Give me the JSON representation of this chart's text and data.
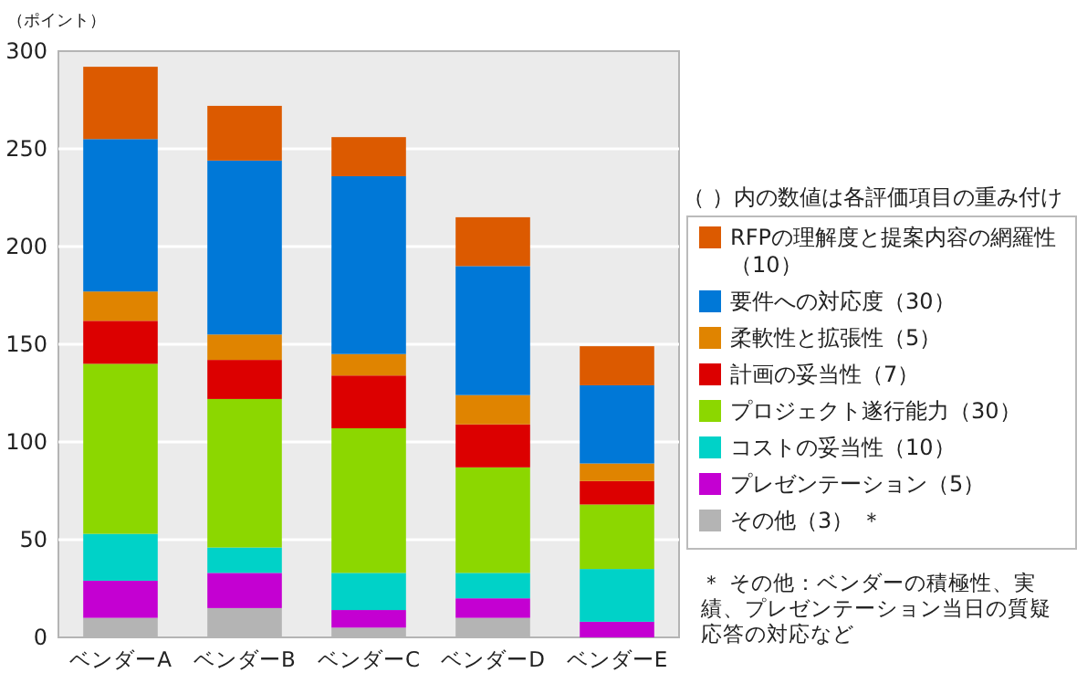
{
  "chart_data": {
    "type": "bar",
    "stacked": true,
    "ylabel": "（ポイント）",
    "legend_title": "（ ）内の数値は各評価項目の重み付け",
    "categories": [
      "ベンダーA",
      "ベンダーB",
      "ベンダーC",
      "ベンダーD",
      "ベンダーE"
    ],
    "series": [
      {
        "name": "その他（3） ＊",
        "color": "#b4b4b4",
        "values": [
          10,
          15,
          5,
          10,
          0
        ]
      },
      {
        "name": "プレゼンテーション（5）",
        "color": "#c400d2",
        "values": [
          19,
          18,
          9,
          10,
          8
        ]
      },
      {
        "name": "コストの妥当性（10）",
        "color": "#00d2c8",
        "values": [
          24,
          13,
          19,
          13,
          27
        ]
      },
      {
        "name": "プロジェクト遂行能力（30）",
        "color": "#8cd700",
        "values": [
          87,
          76,
          74,
          54,
          33
        ]
      },
      {
        "name": "計画の妥当性（7）",
        "color": "#dc0000",
        "values": [
          22,
          20,
          27,
          22,
          12
        ]
      },
      {
        "name": "柔軟性と拡張性（5）",
        "color": "#e08400",
        "values": [
          15,
          13,
          11,
          15,
          9
        ]
      },
      {
        "name": "要件への対応度（30）",
        "color": "#0078d7",
        "values": [
          78,
          89,
          91,
          66,
          40
        ]
      },
      {
        "name": "RFPの理解度と提案内容の網羅性（10）",
        "color": "#dc5a00",
        "values": [
          37,
          28,
          20,
          25,
          20
        ]
      }
    ],
    "ylim": [
      0,
      300
    ],
    "yticks": [
      0,
      50,
      100,
      150,
      200,
      250,
      300
    ],
    "grid": "y",
    "legend": "right",
    "annotations": [
      "＊ その他：ベンダーの積極性、実績、プレゼンテーション当日の質疑応答の対応など"
    ]
  }
}
